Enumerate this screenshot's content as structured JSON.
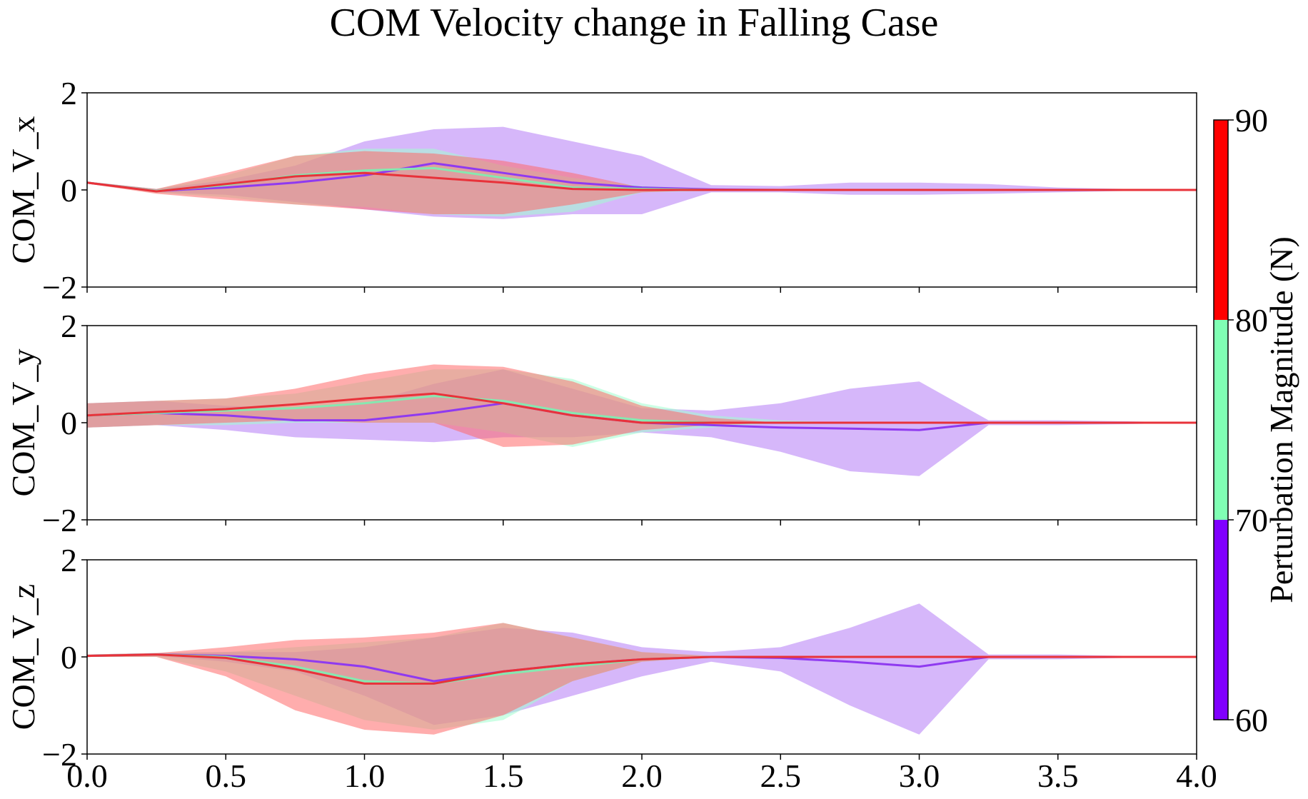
{
  "figure": {
    "title": "COM Velocity change in Falling Case"
  },
  "colorbar": {
    "label": "Perturbation Magnitude (N)",
    "ticks": [
      "60",
      "70",
      "80",
      "90"
    ],
    "segments": [
      {
        "from": 60,
        "to": 70,
        "color": "#8000ff"
      },
      {
        "from": 70,
        "to": 80,
        "color": "#80ffb4"
      },
      {
        "from": 80,
        "to": 90,
        "color": "#ff0000"
      }
    ]
  },
  "chart_data": {
    "type": "line",
    "title": "COM Velocity change in Falling Case",
    "x": [
      0.0,
      0.25,
      0.5,
      0.75,
      1.0,
      1.25,
      1.5,
      1.75,
      2.0,
      2.25,
      2.5,
      2.75,
      3.0,
      3.25,
      3.5,
      3.75,
      4.0
    ],
    "xlim": [
      0,
      4
    ],
    "x_ticks": [
      "0.0",
      "0.5",
      "1.0",
      "1.5",
      "2.0",
      "2.5",
      "3.0",
      "3.5",
      "4.0"
    ],
    "grid": false,
    "series_colors": {
      "60-70": "#8f3af0",
      "70-80": "#86e8b0",
      "80-90": "#e8323a"
    },
    "band_colors": {
      "60-70": "#b47cf5",
      "70-80": "#a3ffd0",
      "80-90": "#ff6a6a"
    },
    "panels": [
      {
        "ylabel": "COM_V_x",
        "ylim": [
          -2,
          2
        ],
        "y_ticks": [
          "2",
          "0",
          "−2"
        ],
        "series": [
          {
            "key": "60-70",
            "mean": [
              0.15,
              -0.02,
              0.05,
              0.15,
              0.3,
              0.55,
              0.35,
              0.15,
              0.05,
              0.01,
              0.0,
              0.0,
              0.0,
              0.0,
              0.0,
              0.0,
              0.0
            ],
            "lower": [
              0.13,
              -0.05,
              -0.1,
              -0.25,
              -0.4,
              -0.55,
              -0.6,
              -0.5,
              -0.5,
              -0.05,
              -0.05,
              -0.1,
              -0.1,
              -0.08,
              -0.05,
              -0.02,
              0.0
            ],
            "upper": [
              0.17,
              0.02,
              0.2,
              0.5,
              1.0,
              1.25,
              1.3,
              1.0,
              0.7,
              0.1,
              0.08,
              0.15,
              0.15,
              0.12,
              0.05,
              0.02,
              0.0
            ]
          },
          {
            "key": "70-80",
            "mean": [
              0.15,
              -0.02,
              0.1,
              0.3,
              0.4,
              0.45,
              0.25,
              0.05,
              0.02,
              0.0,
              0.0,
              0.0,
              0.0,
              0.0,
              0.0,
              0.0,
              0.0
            ],
            "lower": [
              0.13,
              -0.06,
              -0.15,
              -0.3,
              -0.35,
              -0.5,
              -0.55,
              -0.45,
              -0.05,
              -0.02,
              0.0,
              0.0,
              0.0,
              0.0,
              0.0,
              0.0,
              0.0
            ],
            "upper": [
              0.17,
              0.02,
              0.3,
              0.7,
              0.85,
              0.85,
              0.5,
              0.25,
              0.08,
              0.02,
              0.0,
              0.0,
              0.0,
              0.0,
              0.0,
              0.0,
              0.0
            ]
          },
          {
            "key": "80-90",
            "mean": [
              0.15,
              -0.03,
              0.12,
              0.28,
              0.35,
              0.25,
              0.15,
              0.02,
              0.0,
              0.0,
              0.0,
              0.0,
              0.0,
              0.0,
              0.0,
              0.0,
              0.0
            ],
            "lower": [
              0.13,
              -0.08,
              -0.2,
              -0.3,
              -0.4,
              -0.5,
              -0.5,
              -0.3,
              -0.05,
              0.0,
              0.0,
              0.0,
              0.0,
              0.0,
              0.0,
              0.0,
              0.0
            ],
            "upper": [
              0.17,
              0.02,
              0.35,
              0.7,
              0.8,
              0.75,
              0.6,
              0.35,
              0.05,
              0.0,
              0.0,
              0.0,
              0.0,
              0.0,
              0.0,
              0.0,
              0.0
            ]
          }
        ]
      },
      {
        "ylabel": "COM_V_y",
        "ylim": [
          -2,
          2
        ],
        "y_ticks": [
          "2",
          "0",
          "−2"
        ],
        "series": [
          {
            "key": "60-70",
            "mean": [
              0.15,
              0.2,
              0.15,
              0.05,
              0.05,
              0.2,
              0.4,
              0.15,
              0.0,
              -0.05,
              -0.1,
              -0.12,
              -0.15,
              0.0,
              0.0,
              0.0,
              0.0
            ],
            "lower": [
              -0.1,
              -0.05,
              -0.15,
              -0.3,
              -0.35,
              -0.4,
              -0.3,
              -0.3,
              -0.2,
              -0.3,
              -0.6,
              -1.0,
              -1.1,
              -0.05,
              -0.05,
              -0.03,
              0.0
            ],
            "upper": [
              0.4,
              0.45,
              0.35,
              0.3,
              0.4,
              0.8,
              1.1,
              0.7,
              0.3,
              0.25,
              0.4,
              0.7,
              0.85,
              0.05,
              0.05,
              0.03,
              0.0
            ]
          },
          {
            "key": "70-80",
            "mean": [
              0.15,
              0.2,
              0.25,
              0.3,
              0.4,
              0.55,
              0.45,
              0.2,
              0.05,
              0.0,
              0.0,
              0.0,
              0.0,
              0.0,
              0.0,
              0.0,
              0.0
            ],
            "lower": [
              -0.1,
              -0.05,
              -0.05,
              0.0,
              0.0,
              0.0,
              -0.2,
              -0.5,
              -0.2,
              -0.1,
              0.0,
              0.0,
              0.0,
              0.0,
              0.0,
              0.0,
              0.0
            ],
            "upper": [
              0.4,
              0.45,
              0.5,
              0.6,
              0.85,
              1.1,
              1.1,
              0.9,
              0.4,
              0.15,
              0.05,
              0.0,
              0.0,
              0.0,
              0.0,
              0.0,
              0.0
            ]
          },
          {
            "key": "80-90",
            "mean": [
              0.15,
              0.22,
              0.28,
              0.38,
              0.5,
              0.6,
              0.4,
              0.15,
              0.0,
              0.0,
              0.0,
              0.0,
              0.0,
              0.0,
              0.0,
              0.0,
              0.0
            ],
            "lower": [
              -0.1,
              -0.05,
              0.0,
              0.05,
              0.0,
              0.0,
              -0.5,
              -0.45,
              -0.15,
              -0.05,
              0.0,
              0.0,
              0.0,
              0.0,
              0.0,
              0.0,
              0.0
            ],
            "upper": [
              0.4,
              0.45,
              0.5,
              0.7,
              1.0,
              1.2,
              1.15,
              0.85,
              0.35,
              0.1,
              0.0,
              0.0,
              0.0,
              0.0,
              0.0,
              0.0,
              0.0
            ]
          }
        ]
      },
      {
        "ylabel": "COM_V_z",
        "ylim": [
          -2,
          2
        ],
        "y_ticks": [
          "2",
          "0",
          "−2"
        ],
        "series": [
          {
            "key": "60-70",
            "mean": [
              0.02,
              0.05,
              0.02,
              -0.05,
              -0.2,
              -0.5,
              -0.3,
              -0.15,
              -0.05,
              0.0,
              -0.02,
              -0.1,
              -0.2,
              0.0,
              0.0,
              0.0,
              0.0
            ],
            "lower": [
              0.0,
              0.02,
              -0.1,
              -0.3,
              -0.8,
              -1.4,
              -1.2,
              -0.8,
              -0.4,
              -0.1,
              -0.3,
              -1.0,
              -1.6,
              -0.05,
              -0.05,
              -0.02,
              0.0
            ],
            "upper": [
              0.05,
              0.08,
              0.1,
              0.1,
              0.2,
              0.4,
              0.6,
              0.5,
              0.2,
              0.1,
              0.2,
              0.6,
              1.1,
              0.05,
              0.05,
              0.02,
              0.0
            ]
          },
          {
            "key": "70-80",
            "mean": [
              0.02,
              0.05,
              0.0,
              -0.2,
              -0.5,
              -0.55,
              -0.35,
              -0.2,
              -0.05,
              0.0,
              0.0,
              0.0,
              0.0,
              0.0,
              0.0,
              0.0,
              0.0
            ],
            "lower": [
              0.0,
              0.0,
              -0.3,
              -0.8,
              -1.3,
              -1.5,
              -1.3,
              -0.5,
              -0.1,
              0.0,
              0.0,
              0.0,
              0.0,
              0.0,
              0.0,
              0.0,
              0.0
            ],
            "upper": [
              0.05,
              0.08,
              0.1,
              0.2,
              0.3,
              0.4,
              0.7,
              0.4,
              0.1,
              0.02,
              0.0,
              0.0,
              0.0,
              0.0,
              0.0,
              0.0,
              0.0
            ]
          },
          {
            "key": "80-90",
            "mean": [
              0.02,
              0.05,
              -0.02,
              -0.25,
              -0.55,
              -0.55,
              -0.3,
              -0.15,
              -0.05,
              0.0,
              0.0,
              0.0,
              0.0,
              0.0,
              0.0,
              0.0,
              0.0
            ],
            "lower": [
              0.0,
              0.0,
              -0.4,
              -1.1,
              -1.5,
              -1.6,
              -1.2,
              -0.5,
              -0.1,
              0.0,
              0.0,
              0.0,
              0.0,
              0.0,
              0.0,
              0.0,
              0.0
            ],
            "upper": [
              0.05,
              0.08,
              0.2,
              0.35,
              0.4,
              0.5,
              0.7,
              0.4,
              0.1,
              0.02,
              0.0,
              0.0,
              0.0,
              0.0,
              0.0,
              0.0,
              0.0
            ]
          }
        ]
      }
    ]
  }
}
